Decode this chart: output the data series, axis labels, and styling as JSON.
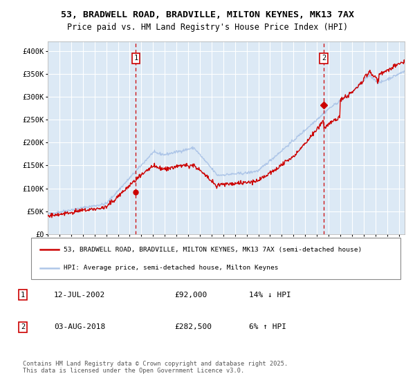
{
  "title1": "53, BRADWELL ROAD, BRADVILLE, MILTON KEYNES, MK13 7AX",
  "title2": "Price paid vs. HM Land Registry's House Price Index (HPI)",
  "legend_line1": "53, BRADWELL ROAD, BRADVILLE, MILTON KEYNES, MK13 7AX (semi-detached house)",
  "legend_line2": "HPI: Average price, semi-detached house, Milton Keynes",
  "annotation1_label": "1",
  "annotation1_date": "12-JUL-2002",
  "annotation1_price": "£92,000",
  "annotation1_hpi": "14% ↓ HPI",
  "annotation2_label": "2",
  "annotation2_date": "03-AUG-2018",
  "annotation2_price": "£282,500",
  "annotation2_hpi": "6% ↑ HPI",
  "footnote": "Contains HM Land Registry data © Crown copyright and database right 2025.\nThis data is licensed under the Open Government Licence v3.0.",
  "sale1_year": 2002.53,
  "sale1_price": 92000,
  "sale2_year": 2018.59,
  "sale2_price": 282500,
  "hpi_color": "#aec6e8",
  "price_color": "#cc0000",
  "vline_color": "#cc0000",
  "bg_color": "#dce9f5",
  "grid_color": "#ffffff",
  "ylim_max": 420000,
  "ylim_min": 0,
  "xmin": 1995,
  "xmax": 2025.5
}
